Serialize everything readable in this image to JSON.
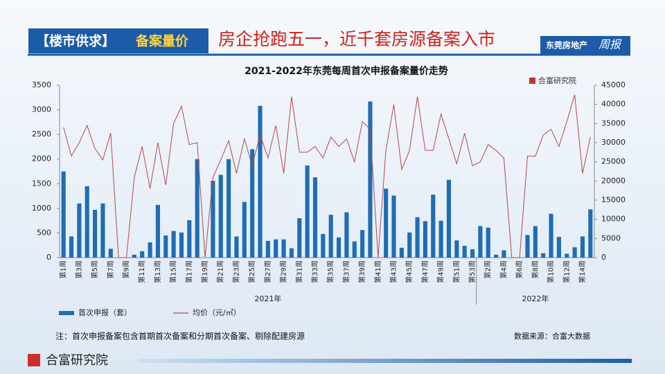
{
  "header": {
    "section": "【楼市供求】",
    "topic": "备案量价",
    "headline": "房企抢跑五一，近千套房源备案入市",
    "badge": "东莞房地产",
    "badge_script": "周报"
  },
  "brand": "合富研究院",
  "note": "注：首次申报备案包含首期首次备案和分期首次备案、剔除配建房源",
  "source": "数据来源：合富大数据",
  "chart_data": {
    "type": "bar",
    "title": "2021-2022年东莞每周首次申报备案量价走势",
    "categories": [
      "第1周",
      null,
      "第3周",
      null,
      "第5周",
      null,
      "第7周",
      null,
      "第9周",
      null,
      "第11周",
      null,
      "第13周",
      null,
      "第15周",
      null,
      "第17周",
      null,
      "第19周",
      null,
      "第21周",
      null,
      "第23周",
      null,
      "第25周",
      null,
      "第27周",
      null,
      "第29周",
      null,
      "第31周",
      null,
      "第33周",
      null,
      "第35周",
      null,
      "第37周",
      null,
      "第39周",
      null,
      "第41周",
      null,
      "第43周",
      null,
      "第45周",
      null,
      "第47周",
      null,
      "第49周",
      null,
      "第51周",
      null,
      "第53周",
      null,
      "第2周",
      null,
      "第4周",
      null,
      "第6周",
      null,
      "第8周",
      null,
      "第10周",
      null,
      "第12周",
      null,
      "第14周",
      null
    ],
    "years": [
      {
        "label": "2021年",
        "from": 0,
        "to": 52
      },
      {
        "label": "2022年",
        "from": 53,
        "to": 67
      }
    ],
    "series": [
      {
        "name": "首次申报（套）",
        "type": "bar",
        "color": "#1f6db3",
        "values": [
          1750,
          430,
          1100,
          1450,
          970,
          1100,
          180,
          0,
          0,
          60,
          130,
          310,
          1070,
          450,
          540,
          510,
          760,
          2000,
          0,
          1560,
          1680,
          2000,
          430,
          1130,
          2200,
          3080,
          340,
          370,
          370,
          190,
          800,
          1870,
          1630,
          480,
          870,
          410,
          920,
          330,
          560,
          3170,
          0,
          1400,
          1260,
          200,
          510,
          820,
          740,
          1280,
          750,
          1580,
          350,
          240,
          170,
          640,
          610,
          60,
          150,
          0,
          0,
          460,
          640,
          90,
          890,
          420,
          80,
          210,
          430,
          980
        ]
      },
      {
        "name": "均价（元/㎡）",
        "type": "line",
        "axis": "y2",
        "color": "#b5464a",
        "values": [
          34000,
          26500,
          30000,
          34500,
          28500,
          25500,
          32500,
          0,
          0,
          21000,
          29000,
          18000,
          30000,
          19000,
          35000,
          39500,
          29500,
          30000,
          0,
          21000,
          25500,
          30500,
          22000,
          31000,
          24000,
          32000,
          26000,
          34500,
          22000,
          42000,
          27500,
          27500,
          29000,
          26000,
          31500,
          29000,
          31000,
          25000,
          35500,
          33500,
          0,
          28000,
          40000,
          23000,
          28000,
          42000,
          28000,
          28000,
          37500,
          31000,
          24500,
          32500,
          24000,
          25000,
          29500,
          28000,
          26000,
          0,
          0,
          26500,
          26500,
          32000,
          33500,
          29000,
          35500,
          42500,
          22000,
          31500
        ]
      }
    ],
    "ylim": [
      0,
      3500
    ],
    "yticks": [
      0,
      500,
      1000,
      1500,
      2000,
      2500,
      3000,
      3500
    ],
    "y2lim": [
      0,
      45000
    ],
    "y2ticks": [
      0,
      5000,
      10000,
      15000,
      20000,
      25000,
      30000,
      35000,
      40000,
      45000
    ],
    "legend": "bottom"
  }
}
